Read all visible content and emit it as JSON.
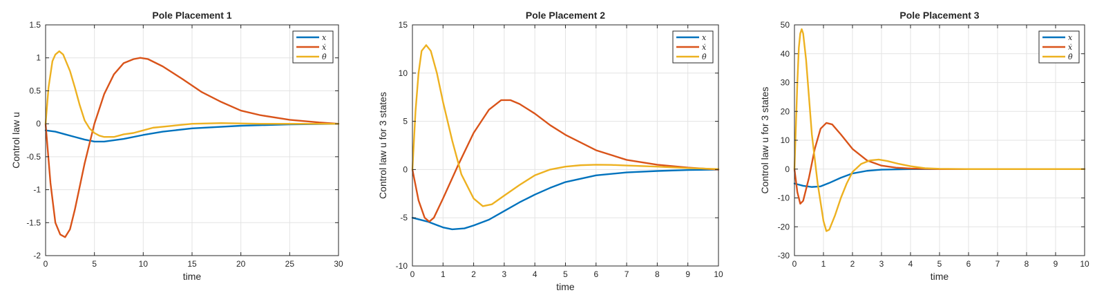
{
  "chart_data": [
    {
      "type": "line",
      "title": "Pole Placement 1",
      "xlabel": "time",
      "ylabel": "Control law u",
      "xlim": [
        0,
        30
      ],
      "ylim": [
        -2,
        1.5
      ],
      "xticks": [
        0,
        5,
        10,
        15,
        20,
        25,
        30
      ],
      "yticks": [
        -2,
        -1.5,
        -1,
        -0.5,
        0,
        0.5,
        1,
        1.5
      ],
      "grid": true,
      "legend_position": "top-right",
      "series": [
        {
          "name": "x",
          "color": "#0072BD",
          "x": [
            0,
            1,
            2,
            3,
            4,
            5,
            6,
            8,
            10,
            12,
            15,
            20,
            25,
            30
          ],
          "y": [
            -0.1,
            -0.12,
            -0.16,
            -0.2,
            -0.24,
            -0.27,
            -0.27,
            -0.23,
            -0.17,
            -0.12,
            -0.07,
            -0.03,
            -0.01,
            0
          ]
        },
        {
          "name": "ẋ",
          "color": "#D95319",
          "x": [
            0,
            0.5,
            1,
            1.5,
            2,
            2.5,
            3,
            4,
            5,
            6,
            7,
            8,
            9,
            9.7,
            10.5,
            12,
            14,
            16,
            18,
            20,
            22,
            25,
            28,
            30
          ],
          "y": [
            0,
            -0.9,
            -1.5,
            -1.68,
            -1.72,
            -1.6,
            -1.3,
            -0.6,
            0,
            0.45,
            0.75,
            0.92,
            0.98,
            1.0,
            0.98,
            0.87,
            0.68,
            0.48,
            0.33,
            0.2,
            0.13,
            0.06,
            0.02,
            0
          ]
        },
        {
          "name": "θ̇",
          "color": "#EDB120",
          "x": [
            0,
            0.3,
            0.7,
            1,
            1.4,
            1.8,
            2.5,
            3,
            3.5,
            4,
            4.5,
            5,
            5.5,
            6,
            7,
            8,
            9,
            10,
            11,
            13,
            15,
            18,
            22,
            26,
            30
          ],
          "y": [
            0,
            0.55,
            0.95,
            1.05,
            1.1,
            1.05,
            0.8,
            0.55,
            0.28,
            0.05,
            -0.07,
            -0.14,
            -0.18,
            -0.2,
            -0.2,
            -0.16,
            -0.14,
            -0.1,
            -0.06,
            -0.03,
            0,
            0.01,
            0,
            0,
            0
          ]
        }
      ]
    },
    {
      "type": "line",
      "title": "Pole Placement 2",
      "xlabel": "time",
      "ylabel": "Control law u for 3 states",
      "xlim": [
        0,
        10
      ],
      "ylim": [
        -10,
        15
      ],
      "xticks": [
        0,
        1,
        2,
        3,
        4,
        5,
        6,
        7,
        8,
        9,
        10
      ],
      "yticks": [
        -10,
        -5,
        0,
        5,
        10,
        15
      ],
      "grid": true,
      "legend_position": "top-right",
      "series": [
        {
          "name": "x",
          "color": "#0072BD",
          "x": [
            0,
            0.5,
            1,
            1.3,
            1.7,
            2,
            2.5,
            3,
            3.5,
            4,
            4.5,
            5,
            6,
            7,
            8,
            9,
            10
          ],
          "y": [
            -5,
            -5.4,
            -6,
            -6.2,
            -6.1,
            -5.8,
            -5.2,
            -4.3,
            -3.4,
            -2.6,
            -1.9,
            -1.3,
            -0.6,
            -0.3,
            -0.15,
            -0.05,
            0
          ]
        },
        {
          "name": "ẋ",
          "color": "#D95319",
          "x": [
            0,
            0.2,
            0.4,
            0.55,
            0.7,
            1,
            1.5,
            2,
            2.5,
            2.9,
            3.2,
            3.5,
            4,
            4.5,
            5,
            6,
            7,
            8,
            9,
            10
          ],
          "y": [
            0,
            -3.2,
            -5,
            -5.4,
            -5,
            -3,
            0.5,
            3.8,
            6.2,
            7.2,
            7.2,
            6.8,
            5.8,
            4.6,
            3.6,
            2,
            1,
            0.5,
            0.2,
            0
          ]
        },
        {
          "name": "θ̇",
          "color": "#EDB120",
          "x": [
            0,
            0.1,
            0.2,
            0.3,
            0.45,
            0.6,
            0.8,
            1,
            1.3,
            1.6,
            2,
            2.3,
            2.6,
            3,
            3.5,
            4,
            4.5,
            5,
            5.5,
            6,
            6.5,
            7,
            8,
            9,
            10
          ],
          "y": [
            0,
            6,
            10,
            12.3,
            12.9,
            12.3,
            10,
            7,
            3,
            -0.5,
            -3,
            -3.8,
            -3.6,
            -2.7,
            -1.6,
            -0.6,
            0,
            0.3,
            0.45,
            0.5,
            0.48,
            0.42,
            0.3,
            0.15,
            0.05
          ]
        }
      ]
    },
    {
      "type": "line",
      "title": "Pole Placement 3",
      "xlabel": "time",
      "ylabel": "Control law u for 3 states",
      "xlim": [
        0,
        10
      ],
      "ylim": [
        -30,
        50
      ],
      "xticks": [
        0,
        1,
        2,
        3,
        4,
        5,
        6,
        7,
        8,
        9,
        10
      ],
      "yticks": [
        -30,
        -20,
        -10,
        0,
        10,
        20,
        30,
        40,
        50
      ],
      "grid": true,
      "legend_position": "top-right",
      "series": [
        {
          "name": "x",
          "color": "#0072BD",
          "x": [
            0,
            0.3,
            0.6,
            0.9,
            1.2,
            1.6,
            2,
            2.5,
            3,
            3.5,
            4,
            5,
            6,
            8,
            10
          ],
          "y": [
            -5,
            -5.8,
            -6.2,
            -6,
            -4.8,
            -3,
            -1.5,
            -0.6,
            -0.2,
            -0.1,
            0,
            0,
            0,
            0,
            0
          ]
        },
        {
          "name": "ẋ",
          "color": "#D95319",
          "x": [
            0,
            0.1,
            0.2,
            0.3,
            0.5,
            0.7,
            0.9,
            1.1,
            1.3,
            1.6,
            2,
            2.5,
            3,
            3.5,
            4,
            5,
            6,
            8,
            10
          ],
          "y": [
            0,
            -8,
            -12,
            -11,
            -3,
            7,
            14,
            16,
            15.5,
            12,
            7,
            3,
            1.2,
            0.5,
            0.2,
            0,
            0,
            0,
            0
          ]
        },
        {
          "name": "θ̇",
          "color": "#EDB120",
          "x": [
            0,
            0.05,
            0.1,
            0.15,
            0.2,
            0.25,
            0.3,
            0.4,
            0.5,
            0.6,
            0.8,
            1,
            1.1,
            1.2,
            1.4,
            1.6,
            1.8,
            2,
            2.3,
            2.6,
            2.9,
            3.2,
            3.6,
            4,
            4.5,
            5,
            6,
            8,
            10
          ],
          "y": [
            0,
            15,
            30,
            42,
            47,
            48.5,
            47,
            38,
            25,
            12,
            -5,
            -18,
            -21.5,
            -21,
            -16,
            -10,
            -5,
            -1,
            1.8,
            3,
            3.3,
            2.8,
            1.8,
            1,
            0.3,
            0.1,
            0,
            0,
            0
          ]
        }
      ]
    }
  ]
}
